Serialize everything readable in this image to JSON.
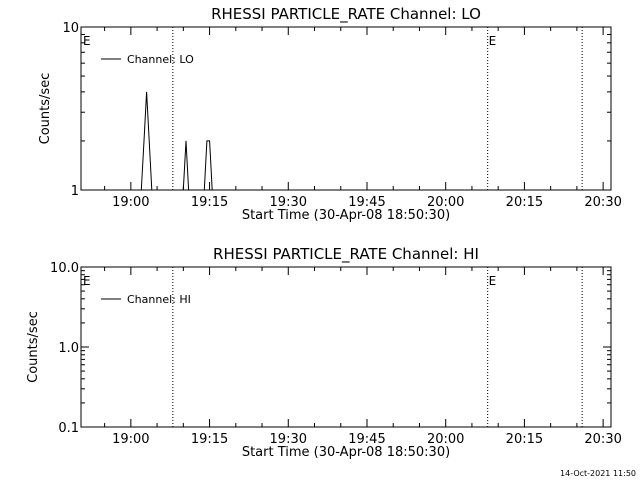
{
  "footer_timestamp": "14-Oct-2021 11:50",
  "colors": {
    "background": "#ffffff",
    "foreground": "#000000"
  },
  "chart_data": [
    {
      "type": "line",
      "title": "RHESSI PARTICLE_RATE Channel: LO",
      "xlabel": "Start Time (30-Apr-08 18:50:30)",
      "ylabel": "Counts/sec",
      "y_scale": "log",
      "ylim": [
        1,
        10
      ],
      "y_tick_labels": [
        {
          "value": 1,
          "label": "1"
        },
        {
          "value": 10,
          "label": "10"
        }
      ],
      "xlim": [
        "18:50:30",
        "20:31:30"
      ],
      "x_tick_labels": [
        "19:00",
        "19:15",
        "19:30",
        "19:45",
        "20:00",
        "20:15",
        "20:30"
      ],
      "grid": false,
      "legend": {
        "position": "top-left",
        "entries": [
          "Channel: LO"
        ]
      },
      "series": [
        {
          "name": "Channel: LO",
          "x": [
            "19:02:00",
            "19:02:30",
            "19:03:00",
            "19:03:30",
            "19:04:00",
            "19:04:30",
            "19:10:00",
            "19:10:30",
            "19:11:00",
            "19:14:00",
            "19:14:30",
            "19:15:00",
            "19:15:30"
          ],
          "y": [
            1,
            2,
            4,
            2,
            1,
            1,
            1,
            2,
            1,
            1,
            2,
            2,
            1
          ]
        }
      ],
      "annotations": [
        {
          "x": "18:50:30",
          "label": "E"
        },
        {
          "x": "20:08:00",
          "label": "E"
        }
      ],
      "dotted_lines_x": [
        "19:08:00",
        "20:08:00",
        "20:26:00"
      ]
    },
    {
      "type": "line",
      "title": "RHESSI PARTICLE_RATE Channel: HI",
      "xlabel": "Start Time (30-Apr-08 18:50:30)",
      "ylabel": "Counts/sec",
      "y_scale": "log",
      "ylim": [
        0.1,
        10
      ],
      "y_tick_labels": [
        {
          "value": 0.1,
          "label": "0.1"
        },
        {
          "value": 1,
          "label": "1.0"
        },
        {
          "value": 10,
          "label": "10.0"
        }
      ],
      "xlim": [
        "18:50:30",
        "20:31:30"
      ],
      "x_tick_labels": [
        "19:00",
        "19:15",
        "19:30",
        "19:45",
        "20:00",
        "20:15",
        "20:30"
      ],
      "grid": false,
      "legend": {
        "position": "top-left",
        "entries": [
          "Channel: HI"
        ]
      },
      "series": [
        {
          "name": "Channel: HI",
          "x": [],
          "y": []
        }
      ],
      "annotations": [
        {
          "x": "18:50:30",
          "label": "E"
        },
        {
          "x": "20:08:00",
          "label": "E"
        }
      ],
      "dotted_lines_x": [
        "19:08:00",
        "20:08:00",
        "20:26:00"
      ]
    }
  ]
}
